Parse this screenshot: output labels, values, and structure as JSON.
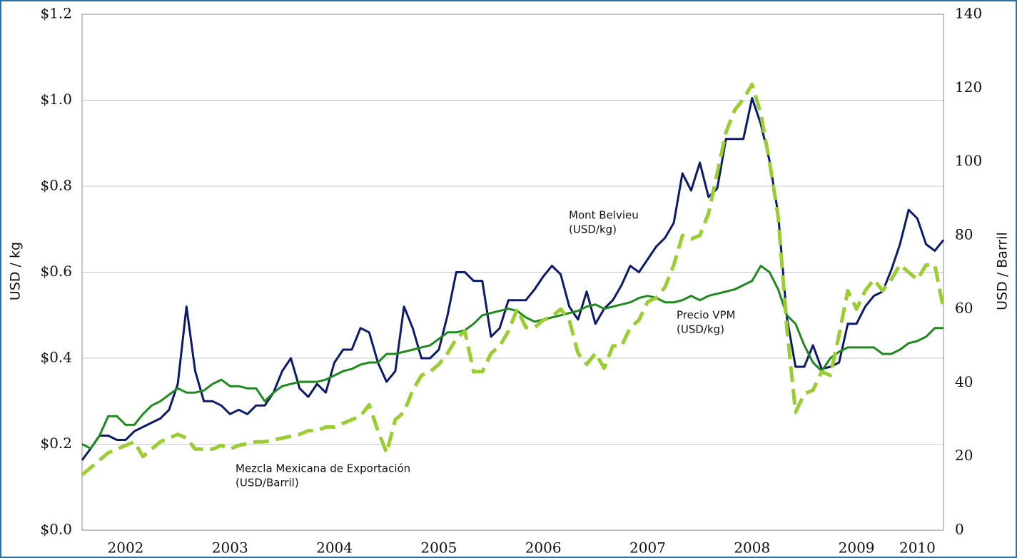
{
  "chart_data": {
    "type": "line",
    "y_label": "USD / kg",
    "y2_label": "USD / Barril",
    "categories": [
      null,
      null,
      null,
      null,
      null,
      "2002",
      null,
      null,
      null,
      null,
      null,
      null,
      null,
      null,
      null,
      null,
      null,
      "2003",
      null,
      null,
      null,
      null,
      null,
      null,
      null,
      null,
      null,
      null,
      null,
      "2004",
      null,
      null,
      null,
      null,
      null,
      null,
      null,
      null,
      null,
      null,
      null,
      "2005",
      null,
      null,
      null,
      null,
      null,
      null,
      null,
      null,
      null,
      null,
      null,
      "2006",
      null,
      null,
      null,
      null,
      null,
      null,
      null,
      null,
      null,
      null,
      null,
      "2007",
      null,
      null,
      null,
      null,
      null,
      null,
      null,
      null,
      null,
      null,
      null,
      "2008",
      null,
      null,
      null,
      null,
      null,
      null,
      null,
      null,
      null,
      null,
      null,
      "2009",
      null,
      null,
      null,
      null,
      null,
      null,
      "2010",
      null,
      null,
      null
    ],
    "ylim": [
      0,
      1.2
    ],
    "yticks": [
      {
        "value": 0,
        "label": "$0.0"
      },
      {
        "value": 0.2,
        "label": "$0.2"
      },
      {
        "value": 0.4,
        "label": "$0.4"
      },
      {
        "value": 0.6,
        "label": "$0.6"
      },
      {
        "value": 0.8,
        "label": "$0.8"
      },
      {
        "value": 1.0,
        "label": "$1.0"
      },
      {
        "value": 1.2,
        "label": "$1.2"
      }
    ],
    "y2lim": [
      0,
      140
    ],
    "y2ticks": [
      0,
      20,
      40,
      60,
      80,
      100,
      120,
      140
    ],
    "grid": true,
    "series": [
      {
        "name": "Mont Belvieu",
        "unit": "(USD/kg)",
        "color": "#0c1a6e",
        "dashed": false,
        "values": [
          0.163,
          0.19,
          0.22,
          0.22,
          0.21,
          0.21,
          0.23,
          0.24,
          0.25,
          0.26,
          0.28,
          0.34,
          0.52,
          0.37,
          0.3,
          0.3,
          0.29,
          0.27,
          0.28,
          0.27,
          0.29,
          0.29,
          0.32,
          0.37,
          0.4,
          0.33,
          0.31,
          0.34,
          0.32,
          0.39,
          0.42,
          0.42,
          0.47,
          0.46,
          0.39,
          0.345,
          0.37,
          0.52,
          0.47,
          0.4,
          0.4,
          0.42,
          0.5,
          0.6,
          0.6,
          0.58,
          0.58,
          0.45,
          0.47,
          0.535,
          0.535,
          0.535,
          0.56,
          0.59,
          0.615,
          0.595,
          0.52,
          0.49,
          0.555,
          0.48,
          0.515,
          0.535,
          0.57,
          0.615,
          0.6,
          0.63,
          0.66,
          0.68,
          0.715,
          0.83,
          0.79,
          0.855,
          0.775,
          0.795,
          0.91,
          0.91,
          0.91,
          1.005,
          0.945,
          0.86,
          0.735,
          0.495,
          0.38,
          0.38,
          0.43,
          0.375,
          0.38,
          0.39,
          0.48,
          0.48,
          0.52,
          0.545,
          0.555,
          0.605,
          0.665,
          0.745,
          0.725,
          0.665,
          0.65,
          0.675
        ]
      },
      {
        "name": "Precio VPM",
        "unit": "(USD/kg)",
        "color": "#1e8a1e",
        "dashed": false,
        "values": [
          0.2,
          0.19,
          0.22,
          0.265,
          0.265,
          0.245,
          0.245,
          0.27,
          0.29,
          0.3,
          0.315,
          0.33,
          0.32,
          0.32,
          0.325,
          0.34,
          0.35,
          0.335,
          0.335,
          0.33,
          0.33,
          0.3,
          0.32,
          0.335,
          0.34,
          0.345,
          0.345,
          0.345,
          0.35,
          0.36,
          0.37,
          0.375,
          0.385,
          0.39,
          0.39,
          0.41,
          0.41,
          0.415,
          0.42,
          0.425,
          0.43,
          0.445,
          0.46,
          0.46,
          0.465,
          0.48,
          0.5,
          0.505,
          0.51,
          0.515,
          0.51,
          0.495,
          0.485,
          0.49,
          0.495,
          0.5,
          0.505,
          0.51,
          0.52,
          0.525,
          0.515,
          0.52,
          0.525,
          0.53,
          0.54,
          0.545,
          0.54,
          0.53,
          0.53,
          0.535,
          0.545,
          0.535,
          0.545,
          0.55,
          0.555,
          0.56,
          0.57,
          0.58,
          0.615,
          0.6,
          0.56,
          0.5,
          0.48,
          0.43,
          0.39,
          0.37,
          0.4,
          0.415,
          0.425,
          0.425,
          0.425,
          0.425,
          0.41,
          0.41,
          0.42,
          0.435,
          0.44,
          0.45,
          0.47,
          0.47
        ]
      },
      {
        "name": "Mezcla Mexicana de Exportación",
        "unit": "(USD/Barril)",
        "color": "#9acd32",
        "dashed": true,
        "axis": "y2",
        "values": [
          15,
          17,
          19,
          21,
          22,
          23,
          24,
          20,
          22,
          24,
          25,
          26,
          25,
          22,
          22,
          22,
          23,
          22,
          23,
          23.5,
          24,
          24,
          24.5,
          25,
          25.5,
          26,
          27,
          27,
          28,
          28,
          29,
          30,
          31,
          34,
          27,
          21,
          30,
          32,
          38,
          42,
          43,
          45,
          48,
          52,
          54,
          43,
          43,
          48,
          50,
          54,
          60,
          55,
          55,
          57,
          58,
          60,
          57,
          48,
          45,
          48,
          44,
          50,
          50,
          55,
          57,
          62,
          63,
          66,
          72,
          80,
          79,
          80,
          86,
          97,
          108,
          114,
          117,
          121,
          113,
          100,
          85,
          55,
          32,
          37,
          38,
          43,
          42,
          53,
          65,
          60,
          65,
          68,
          65,
          68,
          72,
          70,
          68,
          72,
          72,
          60
        ]
      }
    ]
  }
}
